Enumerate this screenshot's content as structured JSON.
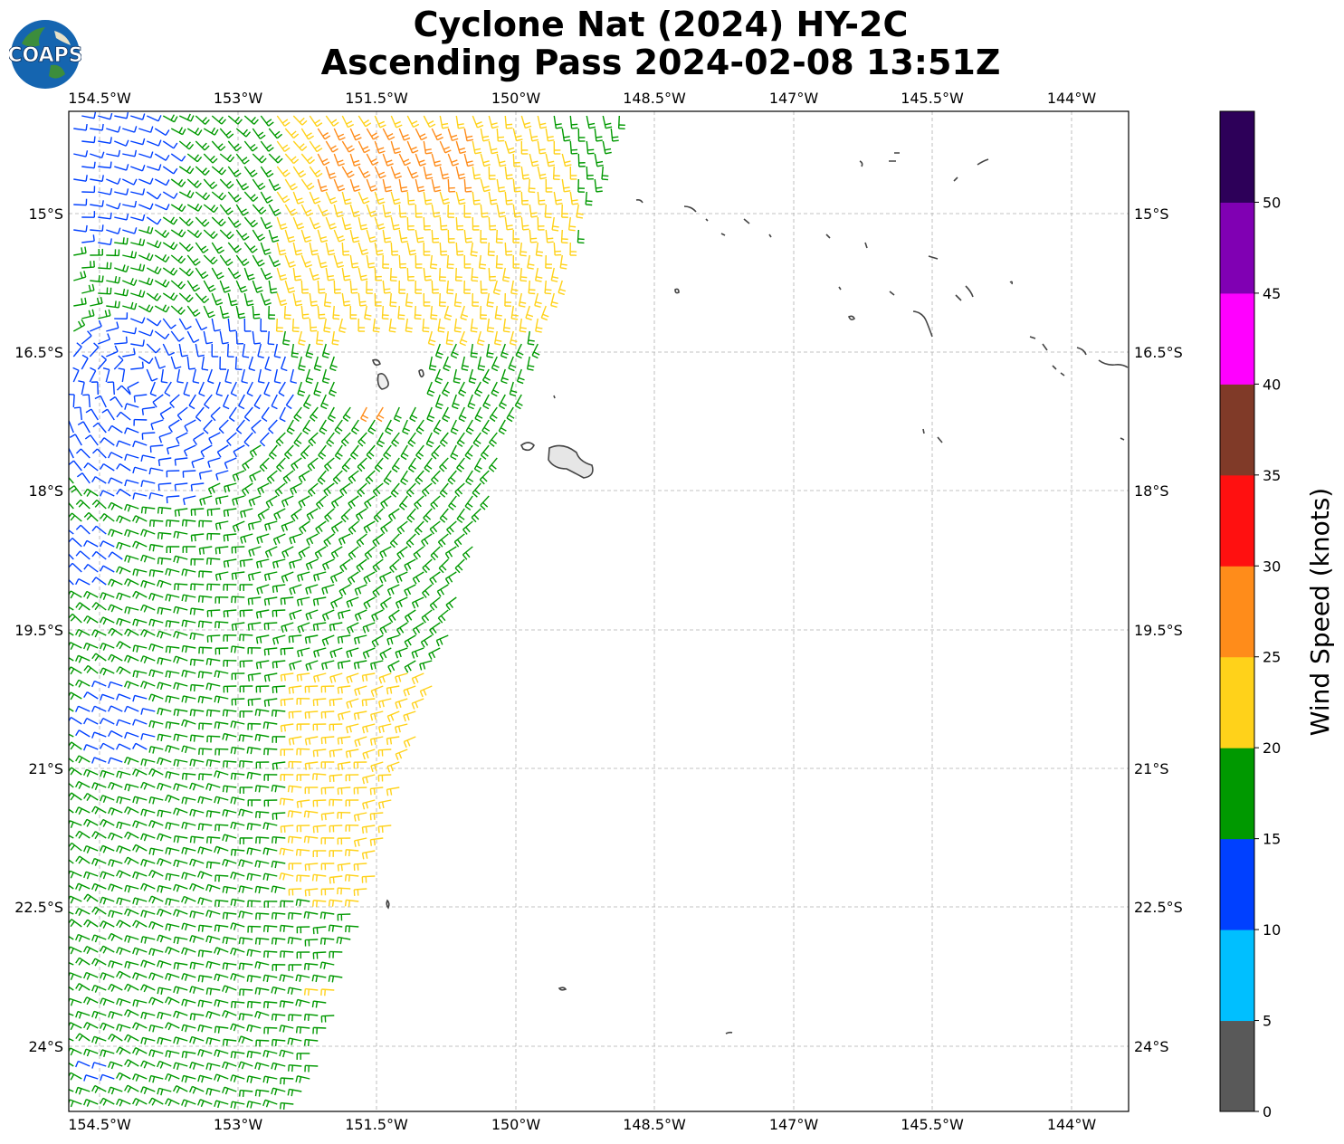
{
  "title_line1": "Cyclone Nat (2024) HY-2C",
  "title_line2": "Ascending Pass 2024-02-08 13:51Z",
  "logo_text": "COAPS",
  "lon_ticks": [
    "154.5°W",
    "153°W",
    "151.5°W",
    "150°W",
    "148.5°W",
    "147°W",
    "145.5°W",
    "144°W"
  ],
  "lat_ticks": [
    "15°S",
    "16.5°S",
    "18°S",
    "19.5°S",
    "21°S",
    "22.5°S",
    "24°S"
  ],
  "colorbar": {
    "label": "Wind Speed (knots)",
    "ticks": [
      "0",
      "5",
      "10",
      "15",
      "20",
      "25",
      "30",
      "35",
      "40",
      "45",
      "50"
    ],
    "colors": [
      "#595959",
      "#00bfff",
      "#0040ff",
      "#009900",
      "#ffd21a",
      "#ff8c1a",
      "#ff1010",
      "#803a28",
      "#ff00ff",
      "#8000b3",
      "#2d0059"
    ]
  },
  "map_colors": {
    "land_outline": "#444444",
    "grid": "#b0b0b0"
  }
}
